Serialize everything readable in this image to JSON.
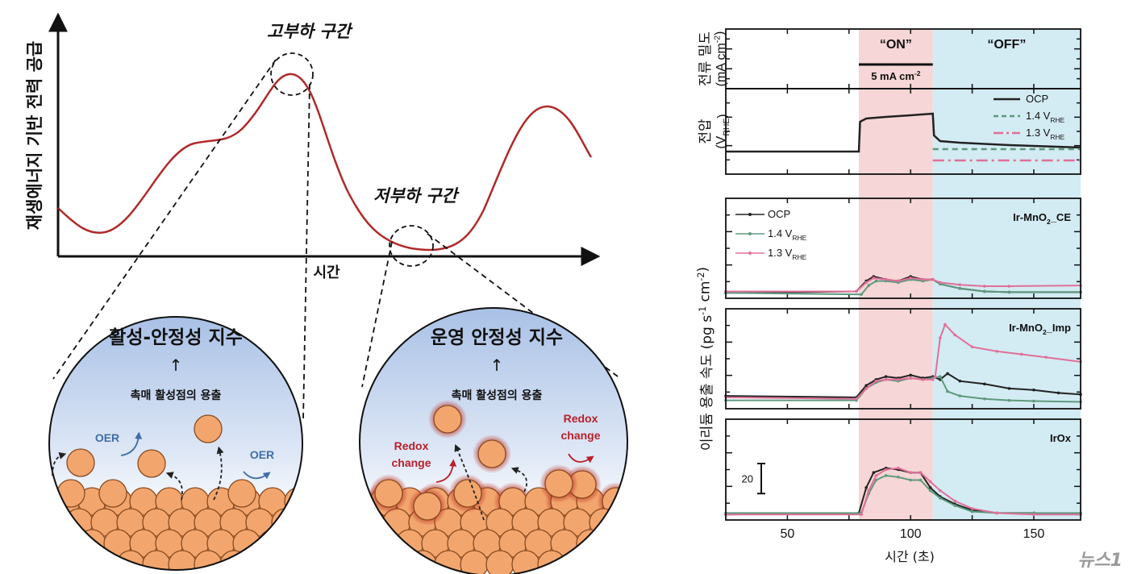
{
  "left_diagram": {
    "y_axis_label": "재생에너지 기반 전력 공급",
    "x_axis_label": "시간",
    "high_load_label": "고부하 구간",
    "low_load_label": "저부하 구간",
    "left_circle": {
      "title": "활성-안정성 지수",
      "arrow": "↑",
      "subtitle": "촉매 활성점의 용출",
      "reaction_labels": [
        "OER",
        "OER"
      ]
    },
    "right_circle": {
      "title": "운영 안정성 지수",
      "arrow": "↑",
      "subtitle": "촉매 활성점의 용출",
      "reaction_labels": [
        [
          "Redox",
          "change"
        ],
        [
          "Redox",
          "change"
        ]
      ]
    },
    "colors": {
      "curve": "#b02a2a",
      "particle": "#f2a66e",
      "particle_edge": "#8a4a1e",
      "oer": "#3f6ea8",
      "redox": "#b8202a",
      "circle_top": "#a9c1e6"
    }
  },
  "chart_data": {
    "type": "line",
    "x_label": "시간 (초)",
    "x_ticks": [
      50,
      100,
      150
    ],
    "xlim": [
      25,
      169
    ],
    "regions": [
      {
        "label": "“ON”",
        "from": 79,
        "to": 109,
        "color": "#f6d6d6"
      },
      {
        "label": "“OFF”",
        "from": 109,
        "to": 169,
        "color": "#d3ebf3"
      }
    ],
    "series_colors": {
      "OCP": "#222222",
      "1.4": "#5e9a7e",
      "1.3": "#e0709a"
    },
    "panels": [
      {
        "id": "current",
        "y_label": [
          "전류 밀도",
          "(mA cm",
          "-2",
          ")"
        ],
        "annotation": [
          "5 mA cm",
          "-2"
        ],
        "step": {
          "from": 79,
          "to": 109
        }
      },
      {
        "id": "voltage",
        "y_label": [
          "전압",
          "(V",
          "RHE",
          ")"
        ],
        "legend": [
          {
            "key": "OCP",
            "label": "OCP",
            "sub": "",
            "dash": "solid"
          },
          {
            "key": "1.4",
            "label": "1.4 V",
            "sub": "RHE",
            "dash": "dashed"
          },
          {
            "key": "1.3",
            "label": "1.3 V",
            "sub": "RHE",
            "dash": "dash-dot"
          }
        ],
        "ylim": [
          0,
          1
        ],
        "series": [
          {
            "key": "OCP",
            "x": [
              25,
              79,
              79.5,
              82,
              90,
              100,
              109,
              109.5,
              112,
              120,
              140,
              169
            ],
            "y": [
              0.25,
              0.25,
              0.62,
              0.66,
              0.68,
              0.7,
              0.72,
              0.45,
              0.38,
              0.36,
              0.33,
              0.3
            ]
          },
          {
            "key": "1.4",
            "x": [
              109,
              169
            ],
            "y": [
              0.28,
              0.28
            ]
          },
          {
            "key": "1.3",
            "x": [
              109,
              169
            ],
            "y": [
              0.14,
              0.14
            ]
          }
        ]
      },
      {
        "id": "Ir-MnO2_CE",
        "label": [
          "Ir-MnO",
          "2",
          "_CE"
        ],
        "legend": [
          {
            "key": "OCP",
            "label": "OCP",
            "sub": ""
          },
          {
            "key": "1.4",
            "label": "1.4 V",
            "sub": "RHE"
          },
          {
            "key": "1.3",
            "label": "1.3 V",
            "sub": "RHE"
          }
        ],
        "ylim": [
          0,
          64
        ],
        "series": [
          {
            "key": "OCP",
            "x": [
              25,
              78,
              82,
              85,
              90,
              95,
              100,
              105,
              109,
              112,
              120,
              130,
              140,
              169
            ],
            "y": [
              2,
              3,
              10,
              13,
              11,
              10,
              13,
              11,
              11,
              8,
              5,
              3,
              2.5,
              2.5
            ]
          },
          {
            "key": "1.4",
            "x": [
              25,
              80,
              83,
              86,
              90,
              95,
              100,
              105,
              109,
              112,
              120,
              130,
              140,
              169
            ],
            "y": [
              2,
              1,
              7,
              10,
              10,
              9,
              11,
              10,
              11,
              8,
              5,
              3,
              2.5,
              2.5
            ]
          },
          {
            "key": "1.3",
            "x": [
              25,
              78,
              82,
              85,
              90,
              95,
              100,
              105,
              109,
              112,
              120,
              130,
              140,
              169
            ],
            "y": [
              3,
              3,
              9,
              12,
              11,
              10,
              12,
              11,
              11,
              9,
              7.5,
              6.5,
              6.5,
              7
            ]
          }
        ]
      },
      {
        "id": "Ir-MnO2_Imp",
        "label": [
          "Ir-MnO",
          "2",
          "_Imp"
        ],
        "ylim": [
          0,
          64
        ],
        "series": [
          {
            "key": "OCP",
            "x": [
              25,
              78,
              82,
              86,
              90,
              95,
              100,
              105,
              109,
              112,
              115,
              120,
              130,
              140,
              150,
              160,
              169
            ],
            "y": [
              7,
              6,
              14,
              18,
              20,
              19,
              21,
              19,
              20,
              18,
              22,
              17,
              15,
              12,
              11,
              9,
              8
            ]
          },
          {
            "key": "1.4",
            "x": [
              25,
              78,
              82,
              86,
              90,
              95,
              100,
              105,
              109,
              112,
              115,
              120,
              130,
              140,
              150,
              169
            ],
            "y": [
              4,
              4,
              12,
              16,
              18,
              17,
              19,
              18,
              19,
              20,
              10,
              7,
              5,
              4,
              3.5,
              3
            ]
          },
          {
            "key": "1.3",
            "x": [
              25,
              78,
              82,
              86,
              90,
              95,
              100,
              105,
              109,
              110,
              112,
              114,
              118,
              125,
              135,
              145,
              155,
              169
            ],
            "y": [
              6,
              5,
              12,
              17,
              18,
              18,
              19,
              18,
              18,
              20,
              46,
              55,
              48,
              40,
              37,
              35,
              33,
              30
            ]
          }
        ]
      },
      {
        "id": "IrOx",
        "label": [
          "IrOx",
          "",
          ""
        ],
        "scale_bar": {
          "value": 20,
          "label": "20"
        },
        "ylim": [
          0,
          64
        ],
        "series": [
          {
            "key": "OCP",
            "x": [
              25,
              79,
              82,
              85,
              90,
              95,
              100,
              104,
              108,
              112,
              118,
              125,
              135,
              150,
              169
            ],
            "y": [
              2,
              3,
              20,
              30,
              33,
              32,
              30,
              30,
              20,
              14,
              9,
              5,
              3,
              3,
              2
            ]
          },
          {
            "key": "1.4",
            "x": [
              25,
              80,
              83,
              86,
              90,
              95,
              100,
              104,
              108,
              112,
              118,
              125,
              135,
              150,
              169
            ],
            "y": [
              3,
              3,
              16,
              25,
              28,
              27,
              25,
              25,
              18,
              13,
              8,
              4,
              3,
              3,
              3
            ]
          },
          {
            "key": "1.3",
            "x": [
              25,
              80,
              83,
              86,
              90,
              95,
              100,
              104,
              108,
              112,
              118,
              125,
              135,
              150,
              169
            ],
            "y": [
              2,
              2,
              18,
              28,
              32,
              33,
              30,
              30,
              24,
              18,
              11,
              6,
              3,
              2,
              2
            ]
          }
        ]
      }
    ],
    "y_label_shared": [
      "이리듐 용출 속도",
      "(pg s",
      "-1",
      " cm",
      "-2",
      ")"
    ]
  },
  "watermark": "뉴스1"
}
